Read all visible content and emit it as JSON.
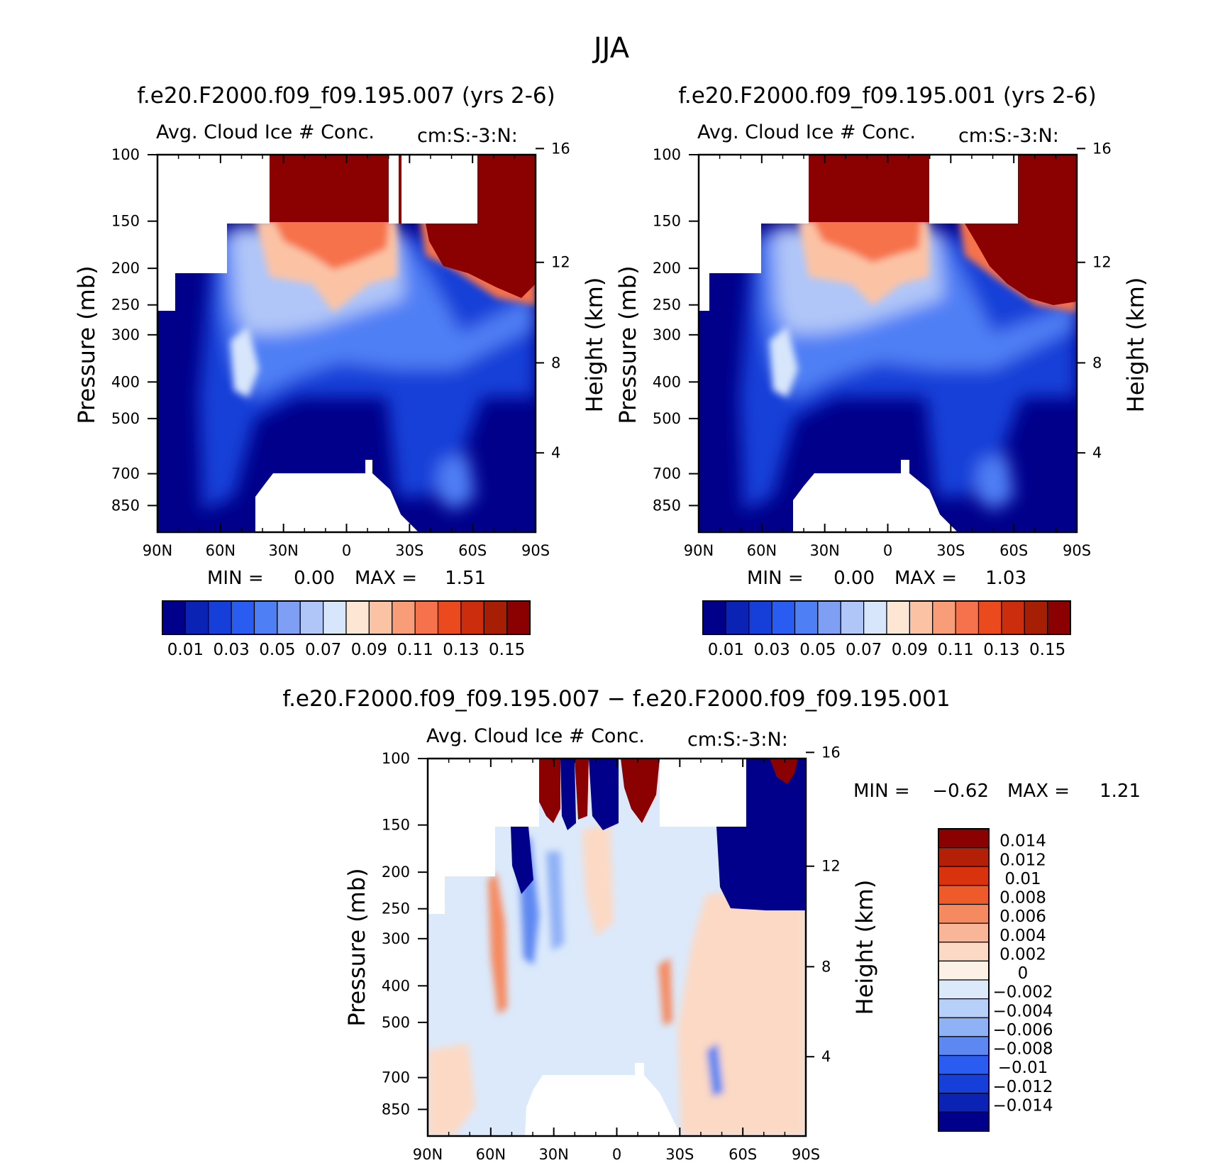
{
  "figure": {
    "title": "JJA"
  },
  "chart_data": [
    {
      "type": "heatmap",
      "title": "f.e20.F2000.f09_f09.195.007 (yrs 2-6)",
      "subtitle": "Avg. Cloud Ice # Conc.",
      "units": "cm:S:-3:N:",
      "xlabel": "",
      "ylabel": "Pressure (mb)",
      "y2label": "Height (km)",
      "x_ticks": [
        "90N",
        "60N",
        "30N",
        "0",
        "30S",
        "60S",
        "90S"
      ],
      "y_ticks": [
        100,
        150,
        200,
        250,
        300,
        400,
        500,
        700,
        850
      ],
      "y2_ticks": [
        16,
        12,
        8,
        4
      ],
      "xlim": [
        90,
        -90
      ],
      "ylim": [
        100,
        1000
      ],
      "y_scale": "log-pressure",
      "min_label": "MIN =",
      "min_value": "0.00",
      "max_label": "MAX =",
      "max_value": "1.51",
      "colorbar": {
        "orientation": "horizontal",
        "labels": [
          "0.01",
          "0.03",
          "0.05",
          "0.07",
          "0.09",
          "0.11",
          "0.13",
          "0.15"
        ],
        "levels": [
          0.01,
          0.02,
          0.03,
          0.04,
          0.05,
          0.06,
          0.07,
          0.08,
          0.09,
          0.1,
          0.11,
          0.12,
          0.13,
          0.14,
          0.15
        ],
        "colors": [
          "#00008b",
          "#0a23b4",
          "#153fd8",
          "#2a5cf2",
          "#4f7ff5",
          "#7f9ff4",
          "#b0c6f8",
          "#d8e6fb",
          "#fde6d4",
          "#fbc3a4",
          "#f89d78",
          "#f5724c",
          "#ea4a1e",
          "#cc2d0c",
          "#a61f04",
          "#8b0000"
        ]
      }
    },
    {
      "type": "heatmap",
      "title": "f.e20.F2000.f09_f09.195.001 (yrs 2-6)",
      "subtitle": "Avg. Cloud Ice # Conc.",
      "units": "cm:S:-3:N:",
      "xlabel": "",
      "ylabel": "Pressure (mb)",
      "y2label": "Height (km)",
      "x_ticks": [
        "90N",
        "60N",
        "30N",
        "0",
        "30S",
        "60S",
        "90S"
      ],
      "y_ticks": [
        100,
        150,
        200,
        250,
        300,
        400,
        500,
        700,
        850
      ],
      "y2_ticks": [
        16,
        12,
        8,
        4
      ],
      "xlim": [
        90,
        -90
      ],
      "ylim": [
        100,
        1000
      ],
      "y_scale": "log-pressure",
      "min_label": "MIN =",
      "min_value": "0.00",
      "max_label": "MAX =",
      "max_value": "1.03",
      "colorbar": {
        "orientation": "horizontal",
        "labels": [
          "0.01",
          "0.03",
          "0.05",
          "0.07",
          "0.09",
          "0.11",
          "0.13",
          "0.15"
        ],
        "levels": [
          0.01,
          0.02,
          0.03,
          0.04,
          0.05,
          0.06,
          0.07,
          0.08,
          0.09,
          0.1,
          0.11,
          0.12,
          0.13,
          0.14,
          0.15
        ],
        "colors": [
          "#00008b",
          "#0a23b4",
          "#153fd8",
          "#2a5cf2",
          "#4f7ff5",
          "#7f9ff4",
          "#b0c6f8",
          "#d8e6fb",
          "#fde6d4",
          "#fbc3a4",
          "#f89d78",
          "#f5724c",
          "#ea4a1e",
          "#cc2d0c",
          "#a61f04",
          "#8b0000"
        ]
      }
    },
    {
      "type": "heatmap",
      "title": "f.e20.F2000.f09_f09.195.007 − f.e20.F2000.f09_f09.195.001",
      "subtitle": "Avg. Cloud Ice # Conc.",
      "units": "cm:S:-3:N:",
      "xlabel": "",
      "ylabel": "Pressure (mb)",
      "y2label": "Height (km)",
      "x_ticks": [
        "90N",
        "60N",
        "30N",
        "0",
        "30S",
        "60S",
        "90S"
      ],
      "y_ticks": [
        100,
        150,
        200,
        250,
        300,
        400,
        500,
        700,
        850
      ],
      "y2_ticks": [
        16,
        12,
        8,
        4
      ],
      "xlim": [
        90,
        -90
      ],
      "ylim": [
        100,
        1000
      ],
      "y_scale": "log-pressure",
      "min_label": "MIN =",
      "min_value": "−0.62",
      "max_label": "MAX =",
      "max_value": "1.21",
      "colorbar": {
        "orientation": "vertical",
        "labels": [
          "0.014",
          "0.012",
          "0.01",
          "0.008",
          "0.006",
          "0.004",
          "0.002",
          "0",
          "−0.002",
          "−0.004",
          "−0.006",
          "−0.008",
          "−0.01",
          "−0.012",
          "−0.014"
        ],
        "levels": [
          0.014,
          0.012,
          0.01,
          0.008,
          0.006,
          0.004,
          0.002,
          0,
          -0.002,
          -0.004,
          -0.006,
          -0.008,
          -0.01,
          -0.012,
          -0.014
        ],
        "colors": [
          "#8b0000",
          "#b31f07",
          "#d8330c",
          "#ef5a2a",
          "#f58a60",
          "#f9b598",
          "#fcd9c4",
          "#fdf1e6",
          "#dbe9fb",
          "#b7d0fa",
          "#8fb1f6",
          "#5e88f1",
          "#2a5cf2",
          "#153fd8",
          "#0a23b4",
          "#00008b"
        ]
      }
    }
  ]
}
